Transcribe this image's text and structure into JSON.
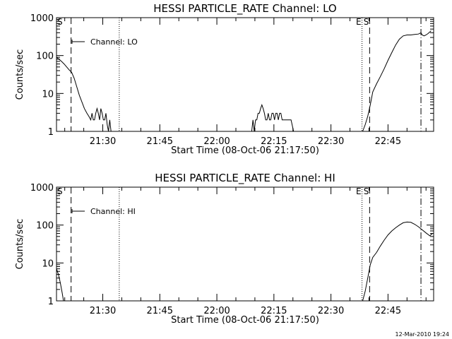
{
  "timestamp": "12-Mar-2010 19:24",
  "chart_data": [
    {
      "type": "line",
      "title": "HESSI PARTICLE_RATE Channel: LO",
      "xlabel": "Start Time (08-Oct-06 21:17:50)",
      "ylabel": "Counts/sec",
      "ylog": true,
      "xlim": [
        "21:17:50",
        "22:57:00"
      ],
      "ylim": [
        1,
        1000
      ],
      "x_ticks": [
        "21:30",
        "21:45",
        "22:00",
        "22:15",
        "22:30",
        "22:45"
      ],
      "y_ticks": [
        "1",
        "10",
        "100",
        "1000"
      ],
      "legend": {
        "position": "top-left",
        "entries": [
          "Channel: LO"
        ]
      },
      "markers": [
        {
          "time": "21:17:50",
          "style": "dash-dot",
          "label": "S"
        },
        {
          "time": "21:21:40",
          "style": "dashed",
          "label": ""
        },
        {
          "time": "21:34:20",
          "style": "dotted",
          "label": ""
        },
        {
          "time": "22:38:10",
          "style": "dotted",
          "label": "E"
        },
        {
          "time": "22:40:10",
          "style": "dashed",
          "label": "S"
        },
        {
          "time": "22:53:40",
          "style": "dash-dot",
          "label": ""
        }
      ],
      "series": [
        {
          "name": "Channel: LO",
          "segments": [
            [
              [
                "21:17:50",
                90
              ],
              [
                "21:18:30",
                80
              ],
              [
                "21:19:10",
                70
              ],
              [
                "21:19:50",
                60
              ],
              [
                "21:20:30",
                50
              ],
              [
                "21:21:10",
                42
              ],
              [
                "21:21:50",
                36
              ],
              [
                "21:22:30",
                25
              ],
              [
                "21:23:10",
                15
              ],
              [
                "21:23:50",
                9
              ],
              [
                "21:24:30",
                6
              ],
              [
                "21:25:10",
                4
              ],
              [
                "21:25:50",
                3
              ],
              [
                "21:26:20",
                2.5
              ],
              [
                "21:26:50",
                2
              ],
              [
                "21:27:10",
                3
              ],
              [
                "21:27:30",
                2
              ],
              [
                "21:27:50",
                2
              ],
              [
                "21:28:10",
                3
              ],
              [
                "21:28:30",
                4
              ],
              [
                "21:28:50",
                3
              ],
              [
                "21:29:10",
                2
              ],
              [
                "21:29:30",
                4
              ],
              [
                "21:29:50",
                3
              ],
              [
                "21:30:10",
                2
              ],
              [
                "21:30:30",
                2
              ],
              [
                "21:30:50",
                3
              ],
              [
                "21:31:10",
                1.5
              ],
              [
                "21:31:30",
                1
              ],
              [
                "21:31:50",
                2
              ],
              [
                "21:32:10",
                1
              ]
            ],
            [
              [
                "22:09:10",
                1
              ],
              [
                "22:09:30",
                2
              ],
              [
                "22:09:50",
                1
              ],
              [
                "22:10:10",
                2
              ],
              [
                "22:10:30",
                2
              ],
              [
                "22:10:50",
                3
              ],
              [
                "22:11:10",
                3
              ],
              [
                "22:11:30",
                4
              ],
              [
                "22:11:50",
                5
              ],
              [
                "22:12:10",
                4
              ],
              [
                "22:12:30",
                3
              ],
              [
                "22:12:50",
                2
              ],
              [
                "22:13:10",
                2
              ],
              [
                "22:13:30",
                3
              ],
              [
                "22:13:50",
                2
              ],
              [
                "22:14:10",
                2
              ],
              [
                "22:14:30",
                3
              ],
              [
                "22:14:50",
                3
              ],
              [
                "22:15:10",
                2
              ],
              [
                "22:15:30",
                3
              ],
              [
                "22:15:50",
                3
              ],
              [
                "22:16:10",
                2
              ],
              [
                "22:16:30",
                3
              ],
              [
                "22:16:50",
                3
              ],
              [
                "22:17:10",
                2
              ],
              [
                "22:17:30",
                2
              ],
              [
                "22:18:30",
                2
              ],
              [
                "22:19:30",
                2
              ],
              [
                "22:20:10",
                1
              ]
            ],
            [
              [
                "22:38:20",
                1
              ],
              [
                "22:39:00",
                1.5
              ],
              [
                "22:39:40",
                2.5
              ],
              [
                "22:40:20",
                5
              ],
              [
                "22:41:00",
                11
              ],
              [
                "22:42:00",
                18
              ],
              [
                "22:43:00",
                28
              ],
              [
                "22:44:00",
                45
              ],
              [
                "22:45:00",
                75
              ],
              [
                "22:46:00",
                120
              ],
              [
                "22:47:00",
                190
              ],
              [
                "22:48:00",
                270
              ],
              [
                "22:49:00",
                330
              ],
              [
                "22:50:00",
                350
              ],
              [
                "22:51:00",
                350
              ],
              [
                "22:52:00",
                360
              ],
              [
                "22:53:00",
                370
              ],
              [
                "22:53:40",
                400
              ],
              [
                "22:54:00",
                350
              ],
              [
                "22:54:30",
                330
              ],
              [
                "22:55:00",
                350
              ],
              [
                "22:55:30",
                380
              ],
              [
                "22:56:00",
                420
              ],
              [
                "22:56:20",
                450
              ]
            ]
          ]
        }
      ]
    },
    {
      "type": "line",
      "title": "HESSI PARTICLE_RATE Channel: HI",
      "xlabel": "Start Time (08-Oct-06 21:17:50)",
      "ylabel": "Counts/sec",
      "ylog": true,
      "xlim": [
        "21:17:50",
        "22:57:00"
      ],
      "ylim": [
        1,
        1000
      ],
      "x_ticks": [
        "21:30",
        "21:45",
        "22:00",
        "22:15",
        "22:30",
        "22:45"
      ],
      "y_ticks": [
        "1",
        "10",
        "100",
        "1000"
      ],
      "legend": {
        "position": "top-left",
        "entries": [
          "Channel: HI"
        ]
      },
      "markers": [
        {
          "time": "21:17:50",
          "style": "dash-dot",
          "label": "S"
        },
        {
          "time": "21:21:40",
          "style": "dashed",
          "label": ""
        },
        {
          "time": "21:34:20",
          "style": "dotted",
          "label": ""
        },
        {
          "time": "22:38:10",
          "style": "dotted",
          "label": "E"
        },
        {
          "time": "22:40:10",
          "style": "dashed",
          "label": "S"
        },
        {
          "time": "22:53:40",
          "style": "dash-dot",
          "label": ""
        }
      ],
      "series": [
        {
          "name": "Channel: HI",
          "segments": [
            [
              [
                "21:17:50",
                7
              ],
              [
                "21:18:20",
                5
              ],
              [
                "21:18:50",
                3
              ],
              [
                "21:19:20",
                1.6
              ],
              [
                "21:19:40",
                1
              ]
            ],
            [
              [
                "22:38:20",
                1
              ],
              [
                "22:39:00",
                1.8
              ],
              [
                "22:39:40",
                4
              ],
              [
                "22:40:20",
                9
              ],
              [
                "22:41:00",
                14
              ],
              [
                "22:42:00",
                19
              ],
              [
                "22:43:00",
                28
              ],
              [
                "22:44:00",
                40
              ],
              [
                "22:45:00",
                55
              ],
              [
                "22:46:00",
                70
              ],
              [
                "22:47:00",
                85
              ],
              [
                "22:48:00",
                100
              ],
              [
                "22:49:00",
                115
              ],
              [
                "22:50:00",
                120
              ],
              [
                "22:51:00",
                118
              ],
              [
                "22:52:00",
                105
              ],
              [
                "22:53:00",
                90
              ],
              [
                "22:54:00",
                75
              ],
              [
                "22:55:00",
                62
              ],
              [
                "22:56:00",
                52
              ],
              [
                "22:56:40",
                60
              ]
            ]
          ]
        }
      ]
    }
  ]
}
